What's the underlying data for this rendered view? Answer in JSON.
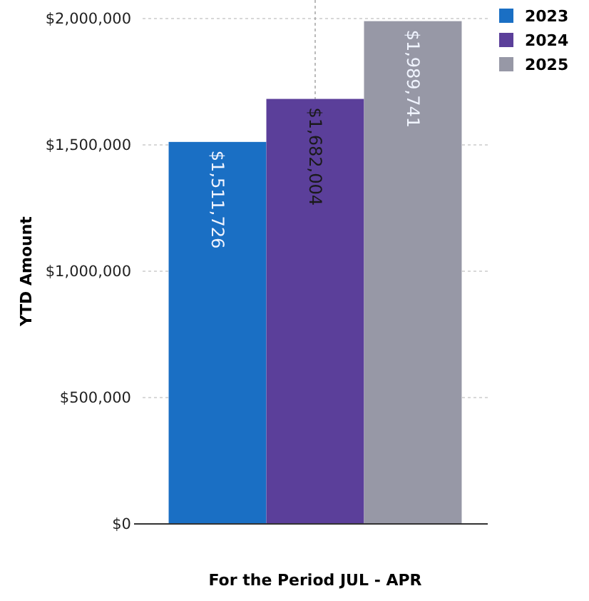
{
  "chart_data": {
    "type": "bar",
    "xlabel": "For the Period JUL - APR",
    "ylabel": "YTD Amount",
    "categories": [
      null
    ],
    "series": [
      {
        "name": "2023",
        "color": "#1a6fc4",
        "values": [
          1511726
        ],
        "value_labels": [
          "$1,511,726"
        ]
      },
      {
        "name": "2024",
        "color": "#5b3f9a",
        "values": [
          1682004
        ],
        "value_labels": [
          "$1,682,004"
        ]
      },
      {
        "name": "2025",
        "color": "#9798a6",
        "values": [
          1989741
        ],
        "value_labels": [
          "$1,989,741"
        ]
      }
    ],
    "ylim": [
      0,
      2000000
    ],
    "yticks": [
      {
        "value": 0,
        "label": "$0"
      },
      {
        "value": 500000,
        "label": "$500,000"
      },
      {
        "value": 1000000,
        "label": "$1,000,000"
      },
      {
        "value": 1500000,
        "label": "$1,500,000"
      },
      {
        "value": 2000000,
        "label": "$2,000,000"
      }
    ],
    "grid": true,
    "legend": "top right"
  }
}
